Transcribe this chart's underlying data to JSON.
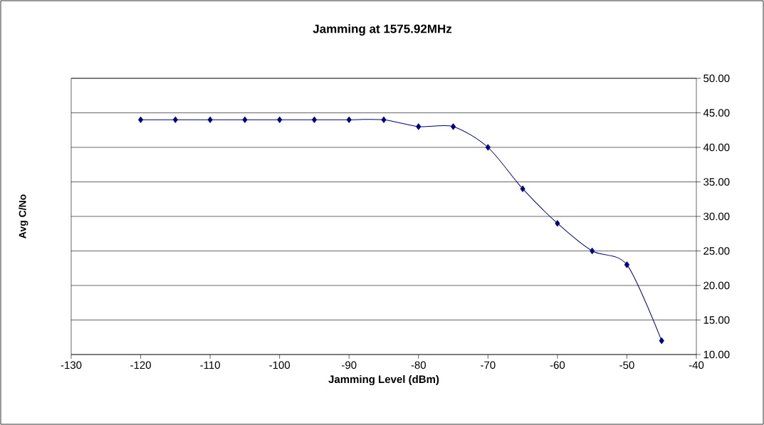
{
  "chart_data": {
    "type": "line",
    "title": "Jamming at 1575.92MHz",
    "xlabel": "Jamming Level (dBm)",
    "ylabel": "Avg C/No",
    "x": [
      -120,
      -115,
      -110,
      -105,
      -100,
      -95,
      -90,
      -85,
      -80,
      -75,
      -70,
      -65,
      -60,
      -55,
      -50,
      -45
    ],
    "values": [
      44,
      44,
      44,
      44,
      44,
      44,
      44,
      44,
      43,
      43,
      40,
      34,
      29,
      25,
      23,
      12
    ],
    "color": "#000080",
    "marker": "diamond",
    "line_style": "solid",
    "grid": "y",
    "xlim": [
      -130,
      -40
    ],
    "xticks": [
      -130,
      -120,
      -110,
      -100,
      -90,
      -80,
      -70,
      -60,
      -50,
      -40
    ],
    "ylim": [
      10,
      50
    ],
    "yticks": [
      {
        "value": 10,
        "label": "10.00"
      },
      {
        "value": 15,
        "label": "15.00"
      },
      {
        "value": 20,
        "label": "20.00"
      },
      {
        "value": 25,
        "label": "25.00"
      },
      {
        "value": 30,
        "label": "30.00"
      },
      {
        "value": 35,
        "label": "35.00"
      },
      {
        "value": 40,
        "label": "40.00"
      },
      {
        "value": 45,
        "label": "45.00"
      },
      {
        "value": 50,
        "label": "50.00"
      }
    ]
  }
}
